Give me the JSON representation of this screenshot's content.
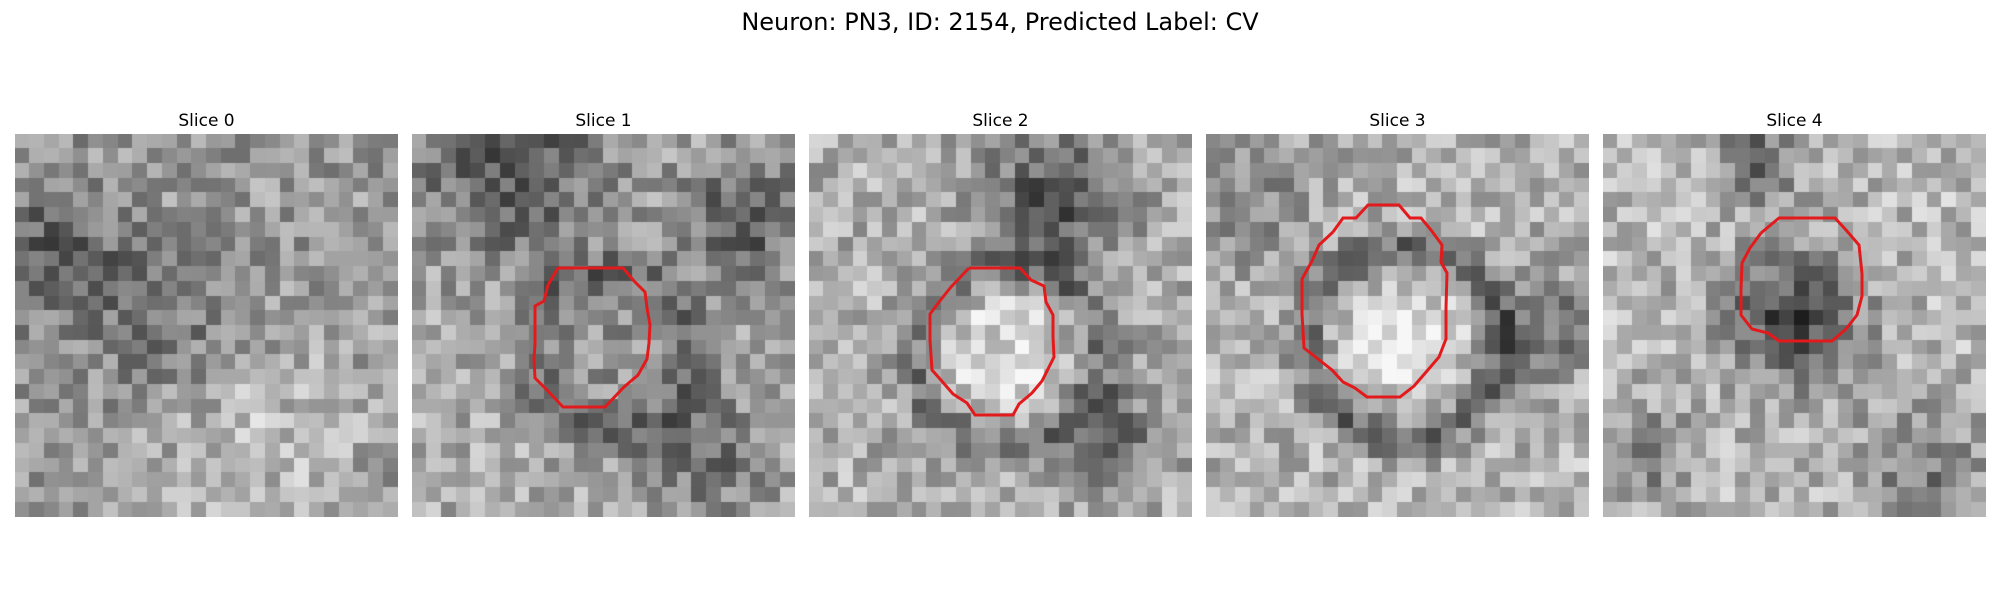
{
  "figure": {
    "title": "Neuron: PN3, ID: 2154, Predicted Label: CV"
  },
  "panels": [
    {
      "label": "Slice 0",
      "has_contour": false,
      "pattern": "noise",
      "mean_gray": 0.58
    },
    {
      "label": "Slice 1",
      "has_contour": true,
      "pattern": "ring-dark-top",
      "mean_gray": 0.62
    },
    {
      "label": "Slice 2",
      "has_contour": true,
      "pattern": "bright-blob",
      "mean_gray": 0.66
    },
    {
      "label": "Slice 3",
      "has_contour": true,
      "pattern": "bright-ring",
      "mean_gray": 0.68
    },
    {
      "label": "Slice 4",
      "has_contour": true,
      "pattern": "dark-blob",
      "mean_gray": 0.66
    }
  ],
  "style": {
    "contour_color": "#e31a1c",
    "colormap": "grayscale"
  }
}
